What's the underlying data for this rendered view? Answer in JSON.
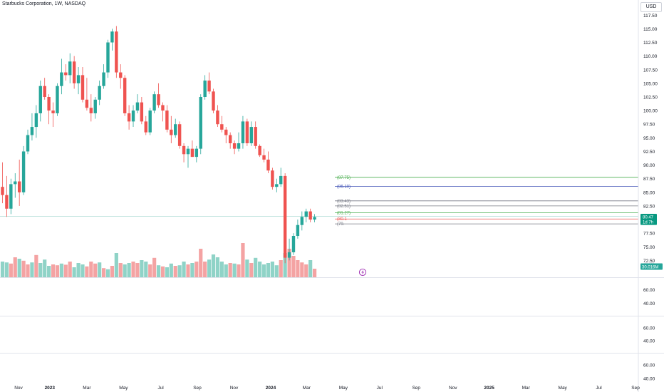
{
  "header": {
    "title": "Starbucks Corporation, 1W, NASDAQ",
    "currency": "USD"
  },
  "colors": {
    "up": "#26a69a",
    "down": "#ef5350",
    "vol_up": "#8fd3c7",
    "vol_down": "#f4a3a3",
    "grid": "#e0e3eb",
    "lvl_green": "#4caf50",
    "lvl_blue": "#3f51b5",
    "lvl_grey": "#787b86",
    "lvl_red": "#ef5350"
  },
  "chart_data": {
    "type": "candlestick",
    "ylim": [
      68.5,
      119.5
    ],
    "price_ticks": [
      "117.50",
      "115.00",
      "112.50",
      "110.00",
      "107.50",
      "105.00",
      "102.50",
      "100.00",
      "97.50",
      "95.00",
      "92.50",
      "90.00",
      "87.50",
      "85.00",
      "82.50",
      "80.00",
      "77.50",
      "75.00",
      "72.50"
    ],
    "time_labels": [
      {
        "label": "Nov",
        "week": 3.8,
        "bold": false
      },
      {
        "label": "2023",
        "week": 11.2,
        "bold": true
      },
      {
        "label": "Mar",
        "week": 20.0,
        "bold": false
      },
      {
        "label": "May",
        "week": 28.7,
        "bold": false
      },
      {
        "label": "Jul",
        "week": 37.5,
        "bold": false
      },
      {
        "label": "Sep",
        "week": 46.2,
        "bold": false
      },
      {
        "label": "Nov",
        "week": 54.9,
        "bold": false
      },
      {
        "label": "2024",
        "week": 63.6,
        "bold": true
      },
      {
        "label": "Mar",
        "week": 72.1,
        "bold": false
      },
      {
        "label": "May",
        "week": 80.8,
        "bold": false
      },
      {
        "label": "Jul",
        "week": 89.4,
        "bold": false
      },
      {
        "label": "Sep",
        "week": 98.1,
        "bold": false
      },
      {
        "label": "Nov",
        "week": 106.8,
        "bold": false
      },
      {
        "label": "2025",
        "week": 115.4,
        "bold": true
      },
      {
        "label": "Mar",
        "week": 124.1,
        "bold": false
      },
      {
        "label": "May",
        "week": 132.8,
        "bold": false
      },
      {
        "label": "Jul",
        "week": 141.4,
        "bold": false
      },
      {
        "label": "Sep",
        "week": 150.1,
        "bold": false
      }
    ],
    "candles": [
      [
        0,
        86.0,
        90.5,
        83.0,
        84.5
      ],
      [
        1,
        84.5,
        88.0,
        80.5,
        82.0
      ],
      [
        2,
        82.0,
        87.5,
        81.0,
        86.5
      ],
      [
        3,
        86.5,
        88.5,
        84.0,
        87.0
      ],
      [
        4,
        87.0,
        91.0,
        82.5,
        85.0
      ],
      [
        5,
        85.0,
        93.5,
        84.5,
        92.5
      ],
      [
        6,
        92.5,
        96.5,
        92.0,
        95.5
      ],
      [
        7,
        95.5,
        99.5,
        94.5,
        97.0
      ],
      [
        8,
        97.0,
        101.0,
        95.0,
        99.5
      ],
      [
        9,
        99.5,
        105.5,
        98.0,
        104.5
      ],
      [
        10,
        104.5,
        106.0,
        102.0,
        102.5
      ],
      [
        11,
        102.5,
        103.0,
        97.5,
        100.0
      ],
      [
        12,
        100.0,
        101.5,
        97.0,
        99.5
      ],
      [
        13,
        99.5,
        105.0,
        99.0,
        104.5
      ],
      [
        14,
        104.5,
        109.5,
        103.0,
        107.0
      ],
      [
        15,
        107.0,
        108.5,
        105.5,
        106.5
      ],
      [
        16,
        106.5,
        110.5,
        105.0,
        109.0
      ],
      [
        17,
        109.0,
        110.0,
        104.0,
        105.0
      ],
      [
        18,
        105.0,
        108.0,
        103.0,
        106.5
      ],
      [
        19,
        106.5,
        108.0,
        101.5,
        102.0
      ],
      [
        20,
        102.0,
        106.0,
        100.0,
        100.5
      ],
      [
        21,
        100.5,
        103.0,
        98.0,
        99.5
      ],
      [
        22,
        99.5,
        102.5,
        98.5,
        102.0
      ],
      [
        23,
        102.0,
        105.5,
        101.0,
        104.5
      ],
      [
        24,
        104.5,
        108.5,
        104.0,
        107.0
      ],
      [
        25,
        107.0,
        113.0,
        106.0,
        112.5
      ],
      [
        26,
        112.5,
        115.0,
        111.0,
        114.5
      ],
      [
        27,
        114.5,
        115.5,
        106.0,
        107.0
      ],
      [
        28,
        107.0,
        108.5,
        104.0,
        106.0
      ],
      [
        29,
        106.0,
        106.5,
        99.0,
        99.5
      ],
      [
        30,
        99.5,
        101.0,
        96.5,
        98.0
      ],
      [
        31,
        98.0,
        101.0,
        97.0,
        100.0
      ],
      [
        32,
        100.0,
        103.0,
        99.5,
        101.5
      ],
      [
        33,
        101.5,
        102.5,
        97.5,
        98.0
      ],
      [
        34,
        98.0,
        99.0,
        95.5,
        96.0
      ],
      [
        35,
        96.0,
        100.5,
        95.5,
        100.0
      ],
      [
        36,
        100.0,
        103.5,
        99.5,
        103.0
      ],
      [
        37,
        103.0,
        105.0,
        100.5,
        101.0
      ],
      [
        38,
        101.0,
        101.5,
        98.0,
        100.0
      ],
      [
        39,
        100.0,
        101.0,
        96.0,
        96.5
      ],
      [
        40,
        96.5,
        99.0,
        94.0,
        95.5
      ],
      [
        41,
        95.5,
        98.5,
        95.0,
        97.5
      ],
      [
        42,
        97.5,
        98.0,
        93.0,
        93.5
      ],
      [
        43,
        93.5,
        94.0,
        90.5,
        92.0
      ],
      [
        44,
        92.0,
        93.5,
        89.5,
        93.0
      ],
      [
        45,
        93.0,
        94.5,
        91.5,
        91.5
      ],
      [
        46,
        91.5,
        93.5,
        90.5,
        93.0
      ],
      [
        47,
        93.0,
        103.0,
        92.0,
        102.5
      ],
      [
        48,
        102.5,
        106.5,
        102.0,
        105.5
      ],
      [
        49,
        105.5,
        107.0,
        103.0,
        103.5
      ],
      [
        50,
        103.5,
        104.0,
        99.5,
        100.0
      ],
      [
        51,
        100.0,
        101.0,
        97.0,
        97.5
      ],
      [
        52,
        97.5,
        99.0,
        96.0,
        96.5
      ],
      [
        53,
        96.5,
        97.0,
        94.0,
        95.5
      ],
      [
        54,
        95.5,
        96.0,
        93.0,
        94.0
      ],
      [
        55,
        94.0,
        94.5,
        92.0,
        93.0
      ],
      [
        56,
        93.0,
        96.0,
        92.5,
        94.0
      ],
      [
        57,
        94.0,
        99.0,
        93.0,
        98.0
      ],
      [
        58,
        98.0,
        98.5,
        93.5,
        94.0
      ],
      [
        59,
        94.0,
        98.0,
        93.5,
        97.0
      ],
      [
        60,
        97.0,
        98.0,
        93.0,
        93.5
      ],
      [
        61,
        93.5,
        93.8,
        91.5,
        91.8
      ],
      [
        62,
        91.8,
        93.0,
        90.5,
        91.0
      ],
      [
        63,
        91.0,
        92.5,
        88.5,
        89.0
      ],
      [
        64,
        89.0,
        89.5,
        85.5,
        86.0
      ],
      [
        65,
        86.0,
        87.5,
        85.0,
        86.5
      ],
      [
        66,
        86.5,
        89.5,
        86.0,
        88.0
      ],
      [
        67,
        88.0,
        88.5,
        72.0,
        73.0
      ],
      [
        68,
        73.0,
        76.5,
        72.5,
        74.0
      ],
      [
        69,
        74.0,
        77.5,
        73.5,
        77.0
      ],
      [
        70,
        77.0,
        80.0,
        76.5,
        79.0
      ],
      [
        71,
        79.0,
        81.5,
        78.0,
        80.5
      ],
      [
        72,
        80.5,
        82.0,
        79.5,
        81.5
      ],
      [
        73,
        81.5,
        82.0,
        79.5,
        80.0
      ],
      [
        74,
        80.0,
        81.0,
        79.5,
        80.47
      ]
    ],
    "volume": [
      [
        0,
        0.55,
        1
      ],
      [
        1,
        0.52,
        1
      ],
      [
        2,
        0.48,
        0
      ],
      [
        3,
        0.7,
        0
      ],
      [
        4,
        0.65,
        1
      ],
      [
        5,
        0.58,
        0
      ],
      [
        6,
        0.45,
        0
      ],
      [
        7,
        0.52,
        1
      ],
      [
        8,
        0.78,
        0
      ],
      [
        9,
        0.5,
        1
      ],
      [
        10,
        0.62,
        1
      ],
      [
        11,
        0.4,
        1
      ],
      [
        12,
        0.45,
        0
      ],
      [
        13,
        0.42,
        0
      ],
      [
        14,
        0.48,
        1
      ],
      [
        15,
        0.44,
        0
      ],
      [
        16,
        0.55,
        0
      ],
      [
        17,
        0.35,
        1
      ],
      [
        18,
        0.5,
        1
      ],
      [
        19,
        0.45,
        1
      ],
      [
        20,
        0.38,
        0
      ],
      [
        21,
        0.55,
        0
      ],
      [
        22,
        0.48,
        0
      ],
      [
        23,
        0.52,
        1
      ],
      [
        24,
        0.32,
        0
      ],
      [
        25,
        0.28,
        1
      ],
      [
        26,
        0.4,
        0
      ],
      [
        27,
        0.85,
        1
      ],
      [
        28,
        0.5,
        0
      ],
      [
        29,
        0.45,
        1
      ],
      [
        30,
        0.5,
        1
      ],
      [
        31,
        0.55,
        0
      ],
      [
        32,
        0.5,
        0
      ],
      [
        33,
        0.6,
        1
      ],
      [
        34,
        0.55,
        1
      ],
      [
        35,
        0.45,
        0
      ],
      [
        36,
        0.68,
        0
      ],
      [
        37,
        0.42,
        1
      ],
      [
        38,
        0.38,
        0
      ],
      [
        39,
        0.35,
        1
      ],
      [
        40,
        0.48,
        1
      ],
      [
        41,
        0.4,
        0
      ],
      [
        42,
        0.42,
        1
      ],
      [
        43,
        0.55,
        1
      ],
      [
        44,
        0.45,
        0
      ],
      [
        45,
        0.5,
        1
      ],
      [
        46,
        0.55,
        0
      ],
      [
        47,
        1.0,
        0
      ],
      [
        48,
        0.55,
        0
      ],
      [
        49,
        0.62,
        1
      ],
      [
        50,
        0.8,
        1
      ],
      [
        51,
        0.7,
        1
      ],
      [
        52,
        0.55,
        1
      ],
      [
        53,
        0.45,
        1
      ],
      [
        54,
        0.5,
        0
      ],
      [
        55,
        0.48,
        1
      ],
      [
        56,
        0.45,
        0
      ],
      [
        57,
        1.2,
        0
      ],
      [
        58,
        0.62,
        1
      ],
      [
        59,
        0.5,
        0
      ],
      [
        60,
        0.68,
        1
      ],
      [
        61,
        0.55,
        1
      ],
      [
        62,
        0.45,
        1
      ],
      [
        63,
        0.5,
        1
      ],
      [
        64,
        0.55,
        1
      ],
      [
        65,
        0.42,
        1
      ],
      [
        66,
        0.6,
        0
      ],
      [
        67,
        0.85,
        1
      ],
      [
        68,
        1.0,
        0
      ],
      [
        69,
        0.75,
        0
      ],
      [
        70,
        0.6,
        0
      ],
      [
        71,
        0.52,
        0
      ],
      [
        72,
        0.45,
        0
      ],
      [
        73,
        0.6,
        1
      ],
      [
        74,
        0.3,
        0
      ]
    ],
    "levels": [
      {
        "price": 87.75,
        "label": "(87.75)",
        "color": "lvl_green"
      },
      {
        "price": 86.1,
        "label": "(86.10)",
        "color": "lvl_blue"
      },
      {
        "price": 83.43,
        "label": "(83.43)",
        "color": "lvl_grey"
      },
      {
        "price": 82.51,
        "label": "(82.51)",
        "color": "lvl_grey"
      },
      {
        "price": 81.27,
        "label": "(81.27)",
        "color": "lvl_green"
      },
      {
        "price": 80.11,
        "label": "(80.1",
        "color": "lvl_red"
      },
      {
        "price": 79.21,
        "label": "(79.",
        "color": "lvl_grey"
      }
    ],
    "price_badges": [
      {
        "text": "80.47",
        "price": 80.47
      },
      {
        "text": "1d 7h",
        "price": 79.6
      }
    ],
    "volume_badge": "30.016M",
    "volume_axis_hint": "70.00",
    "panes": [
      {
        "ticks": [
          "60.00",
          "40.00"
        ]
      },
      {
        "ticks": [
          "60.00",
          "40.00"
        ]
      },
      {
        "ticks": [
          "60.00",
          "40.00"
        ]
      }
    ]
  }
}
